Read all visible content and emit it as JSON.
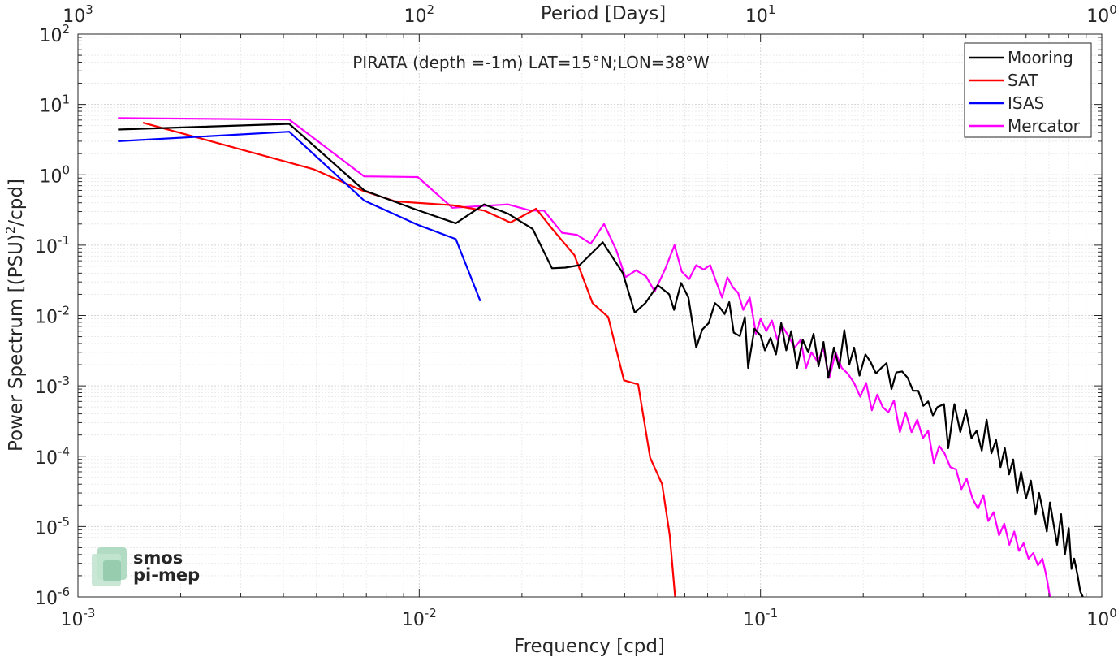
{
  "chart_data": {
    "type": "line",
    "title": "PIRATA (depth =-1m) LAT=15°N;LON=38°W",
    "xlabel": "Frequency [cpd]",
    "ylabel": "Power Spectrum [(PSU)",
    "ylabel_sup": "2",
    "ylabel_tail": "/cpd]",
    "top_xlabel": "Period [Days]",
    "xscale": "log",
    "yscale": "log",
    "xlim": [
      0.001,
      1
    ],
    "ylim": [
      1e-06,
      100
    ],
    "grid": true,
    "minor_grid": true,
    "legend_position": "top-right",
    "x_ticks": [
      {
        "value": 0.001,
        "base": "10",
        "exp": "-3"
      },
      {
        "value": 0.01,
        "base": "10",
        "exp": "-2"
      },
      {
        "value": 0.1,
        "base": "10",
        "exp": "-1"
      },
      {
        "value": 1,
        "base": "10",
        "exp": "0"
      }
    ],
    "top_ticks": [
      {
        "value": 0.001,
        "base": "10",
        "exp": "3"
      },
      {
        "value": 0.01,
        "base": "10",
        "exp": "2"
      },
      {
        "value": 0.1,
        "base": "10",
        "exp": "1"
      },
      {
        "value": 1,
        "base": "10",
        "exp": "0"
      }
    ],
    "y_ticks": [
      {
        "value": 100,
        "base": "10",
        "exp": "2"
      },
      {
        "value": 10,
        "base": "10",
        "exp": "1"
      },
      {
        "value": 1,
        "base": "10",
        "exp": "0"
      },
      {
        "value": 0.1,
        "base": "10",
        "exp": "-1"
      },
      {
        "value": 0.01,
        "base": "10",
        "exp": "-2"
      },
      {
        "value": 0.001,
        "base": "10",
        "exp": "-3"
      },
      {
        "value": 0.0001,
        "base": "10",
        "exp": "-4"
      },
      {
        "value": 1e-05,
        "base": "10",
        "exp": "-5"
      },
      {
        "value": 1e-06,
        "base": "10",
        "exp": "-6"
      }
    ],
    "series": [
      {
        "name": "Mooring",
        "color": "#000000",
        "points": [
          [
            0.00131,
            4.4
          ],
          [
            0.00416,
            5.3
          ],
          [
            0.0069,
            0.6
          ],
          [
            0.0098,
            0.32
          ],
          [
            0.0128,
            0.205
          ],
          [
            0.0155,
            0.38
          ],
          [
            0.0182,
            0.28
          ],
          [
            0.0215,
            0.17
          ],
          [
            0.0245,
            0.047
          ],
          [
            0.0268,
            0.048
          ],
          [
            0.0295,
            0.052
          ],
          [
            0.0345,
            0.11
          ],
          [
            0.0395,
            0.04
          ],
          [
            0.0428,
            0.011
          ],
          [
            0.046,
            0.015
          ],
          [
            0.05,
            0.027
          ],
          [
            0.054,
            0.02
          ],
          [
            0.0558,
            0.012
          ],
          [
            0.0585,
            0.029
          ],
          [
            0.0615,
            0.018
          ],
          [
            0.0648,
            0.0035
          ],
          [
            0.0675,
            0.0063
          ],
          [
            0.0705,
            0.0078
          ],
          [
            0.0735,
            0.015
          ],
          [
            0.076,
            0.013
          ],
          [
            0.0785,
            0.0105
          ],
          [
            0.081,
            0.0155
          ],
          [
            0.0835,
            0.0057
          ],
          [
            0.087,
            0.0051
          ],
          [
            0.09,
            0.0095
          ],
          [
            0.092,
            0.0018
          ],
          [
            0.096,
            0.0065
          ],
          [
            0.1,
            0.0052
          ],
          [
            0.103,
            0.0032
          ],
          [
            0.107,
            0.0048
          ],
          [
            0.111,
            0.0028
          ],
          [
            0.115,
            0.0078
          ],
          [
            0.119,
            0.0032
          ],
          [
            0.123,
            0.006
          ],
          [
            0.128,
            0.0018
          ],
          [
            0.133,
            0.0045
          ],
          [
            0.138,
            0.003
          ],
          [
            0.143,
            0.0055
          ],
          [
            0.148,
            0.0019
          ],
          [
            0.153,
            0.0042
          ],
          [
            0.158,
            0.0013
          ],
          [
            0.164,
            0.0035
          ],
          [
            0.17,
            0.0018
          ],
          [
            0.176,
            0.0062
          ],
          [
            0.182,
            0.002
          ],
          [
            0.188,
            0.0035
          ],
          [
            0.195,
            0.0014
          ],
          [
            0.203,
            0.0028
          ],
          [
            0.21,
            0.0022
          ],
          [
            0.218,
            0.0015
          ],
          [
            0.226,
            0.0018
          ],
          [
            0.234,
            0.0021
          ],
          [
            0.242,
            0.0009
          ],
          [
            0.25,
            0.00155
          ],
          [
            0.26,
            0.0016
          ],
          [
            0.27,
            0.0013
          ],
          [
            0.28,
            0.00085
          ],
          [
            0.29,
            0.00085
          ],
          [
            0.3,
            0.00052
          ],
          [
            0.31,
            0.0006
          ],
          [
            0.32,
            0.00038
          ],
          [
            0.33,
            0.0005
          ],
          [
            0.345,
            0.00055
          ],
          [
            0.355,
            0.00013
          ],
          [
            0.37,
            0.00055
          ],
          [
            0.385,
            0.00022
          ],
          [
            0.4,
            0.00045
          ],
          [
            0.415,
            0.00018
          ],
          [
            0.43,
            0.00023
          ],
          [
            0.445,
            0.00012
          ],
          [
            0.46,
            0.00033
          ],
          [
            0.475,
            0.00011
          ],
          [
            0.49,
            0.00017
          ],
          [
            0.505,
            7e-05
          ],
          [
            0.52,
            0.00013
          ],
          [
            0.535,
            5.5e-05
          ],
          [
            0.55,
            9e-05
          ],
          [
            0.565,
            3e-05
          ],
          [
            0.58,
            6e-05
          ],
          [
            0.6,
            2.5e-05
          ],
          [
            0.62,
            4.5e-05
          ],
          [
            0.64,
            1.5e-05
          ],
          [
            0.655,
            3e-05
          ],
          [
            0.67,
            1.8e-05
          ],
          [
            0.69,
            8.5e-06
          ],
          [
            0.705,
            2.2e-05
          ],
          [
            0.72,
            1.2e-05
          ],
          [
            0.74,
            5.5e-06
          ],
          [
            0.76,
            1.5e-05
          ],
          [
            0.78,
            4e-06
          ],
          [
            0.8,
            9.5e-06
          ],
          [
            0.815,
            2.5e-06
          ],
          [
            0.83,
            3.5e-06
          ],
          [
            0.85,
            2e-06
          ],
          [
            0.865,
            1.2e-06
          ],
          [
            0.88,
            1e-06
          ]
        ]
      },
      {
        "name": "SAT",
        "color": "#ff0000",
        "points": [
          [
            0.00155,
            5.5
          ],
          [
            0.0049,
            1.2
          ],
          [
            0.0068,
            0.6
          ],
          [
            0.0085,
            0.42
          ],
          [
            0.0125,
            0.37
          ],
          [
            0.0155,
            0.31
          ],
          [
            0.0185,
            0.21
          ],
          [
            0.022,
            0.33
          ],
          [
            0.0248,
            0.16
          ],
          [
            0.0285,
            0.072
          ],
          [
            0.0322,
            0.015
          ],
          [
            0.0358,
            0.0095
          ],
          [
            0.0398,
            0.0012
          ],
          [
            0.0438,
            0.00105
          ],
          [
            0.0475,
            9.5e-05
          ],
          [
            0.0515,
            4e-05
          ],
          [
            0.0542,
            7.5e-06
          ],
          [
            0.0562,
            1e-06
          ]
        ]
      },
      {
        "name": "ISAS",
        "color": "#0000ff",
        "points": [
          [
            0.00131,
            3.0
          ],
          [
            0.00416,
            4.1
          ],
          [
            0.0069,
            0.43
          ],
          [
            0.0099,
            0.195
          ],
          [
            0.0128,
            0.122
          ],
          [
            0.0151,
            0.016
          ]
        ]
      },
      {
        "name": "Mercator",
        "color": "#ff00ff",
        "points": [
          [
            0.00131,
            6.4
          ],
          [
            0.00416,
            6.1
          ],
          [
            0.0069,
            0.95
          ],
          [
            0.0099,
            0.93
          ],
          [
            0.0125,
            0.34
          ],
          [
            0.0152,
            0.36
          ],
          [
            0.0182,
            0.38
          ],
          [
            0.0212,
            0.31
          ],
          [
            0.0232,
            0.31
          ],
          [
            0.0262,
            0.15
          ],
          [
            0.029,
            0.14
          ],
          [
            0.0318,
            0.105
          ],
          [
            0.0348,
            0.2
          ],
          [
            0.0378,
            0.085
          ],
          [
            0.0402,
            0.035
          ],
          [
            0.0432,
            0.044
          ],
          [
            0.0462,
            0.036
          ],
          [
            0.049,
            0.022
          ],
          [
            0.0525,
            0.045
          ],
          [
            0.056,
            0.1
          ],
          [
            0.0588,
            0.042
          ],
          [
            0.0618,
            0.033
          ],
          [
            0.0648,
            0.052
          ],
          [
            0.0682,
            0.045
          ],
          [
            0.0712,
            0.052
          ],
          [
            0.0742,
            0.03
          ],
          [
            0.0772,
            0.018
          ],
          [
            0.08,
            0.035
          ],
          [
            0.083,
            0.025
          ],
          [
            0.086,
            0.021
          ],
          [
            0.089,
            0.012
          ],
          [
            0.093,
            0.018
          ],
          [
            0.097,
            0.0055
          ],
          [
            0.1,
            0.009
          ],
          [
            0.104,
            0.006
          ],
          [
            0.108,
            0.0085
          ],
          [
            0.112,
            0.0045
          ],
          [
            0.116,
            0.007
          ],
          [
            0.121,
            0.005
          ],
          [
            0.126,
            0.0035
          ],
          [
            0.131,
            0.0045
          ],
          [
            0.136,
            0.0018
          ],
          [
            0.141,
            0.003
          ],
          [
            0.147,
            0.0022
          ],
          [
            0.153,
            0.0034
          ],
          [
            0.159,
            0.0013
          ],
          [
            0.166,
            0.003
          ],
          [
            0.173,
            0.0018
          ],
          [
            0.18,
            0.0015
          ],
          [
            0.188,
            0.0011
          ],
          [
            0.196,
            0.0007
          ],
          [
            0.204,
            0.0011
          ],
          [
            0.212,
            0.00045
          ],
          [
            0.22,
            0.00075
          ],
          [
            0.228,
            0.0005
          ],
          [
            0.237,
            0.00042
          ],
          [
            0.246,
            0.00062
          ],
          [
            0.256,
            0.00022
          ],
          [
            0.266,
            0.00042
          ],
          [
            0.277,
            0.00022
          ],
          [
            0.288,
            0.00033
          ],
          [
            0.299,
            0.00018
          ],
          [
            0.31,
            0.00023
          ],
          [
            0.322,
            8e-05
          ],
          [
            0.334,
            0.00014
          ],
          [
            0.346,
            0.00011
          ],
          [
            0.36,
            7e-05
          ],
          [
            0.374,
            6.5e-05
          ],
          [
            0.388,
            3.4e-05
          ],
          [
            0.402,
            4.8e-05
          ],
          [
            0.418,
            2.5e-05
          ],
          [
            0.434,
            1.8e-05
          ],
          [
            0.45,
            2.8e-05
          ],
          [
            0.465,
            1.2e-05
          ],
          [
            0.482,
            1.6e-05
          ],
          [
            0.5,
            7.5e-06
          ],
          [
            0.518,
            1.1e-05
          ],
          [
            0.536,
            5.5e-06
          ],
          [
            0.554,
            8.5e-06
          ],
          [
            0.572,
            4.5e-06
          ],
          [
            0.59,
            5.8e-06
          ],
          [
            0.61,
            3.5e-06
          ],
          [
            0.63,
            4.2e-06
          ],
          [
            0.65,
            2.8e-06
          ],
          [
            0.67,
            3.5e-06
          ],
          [
            0.685,
            2.2e-06
          ],
          [
            0.695,
            1.5e-06
          ],
          [
            0.705,
            1e-06
          ]
        ]
      }
    ]
  },
  "logo": {
    "line1": "smos",
    "line2": "pi-mep"
  }
}
